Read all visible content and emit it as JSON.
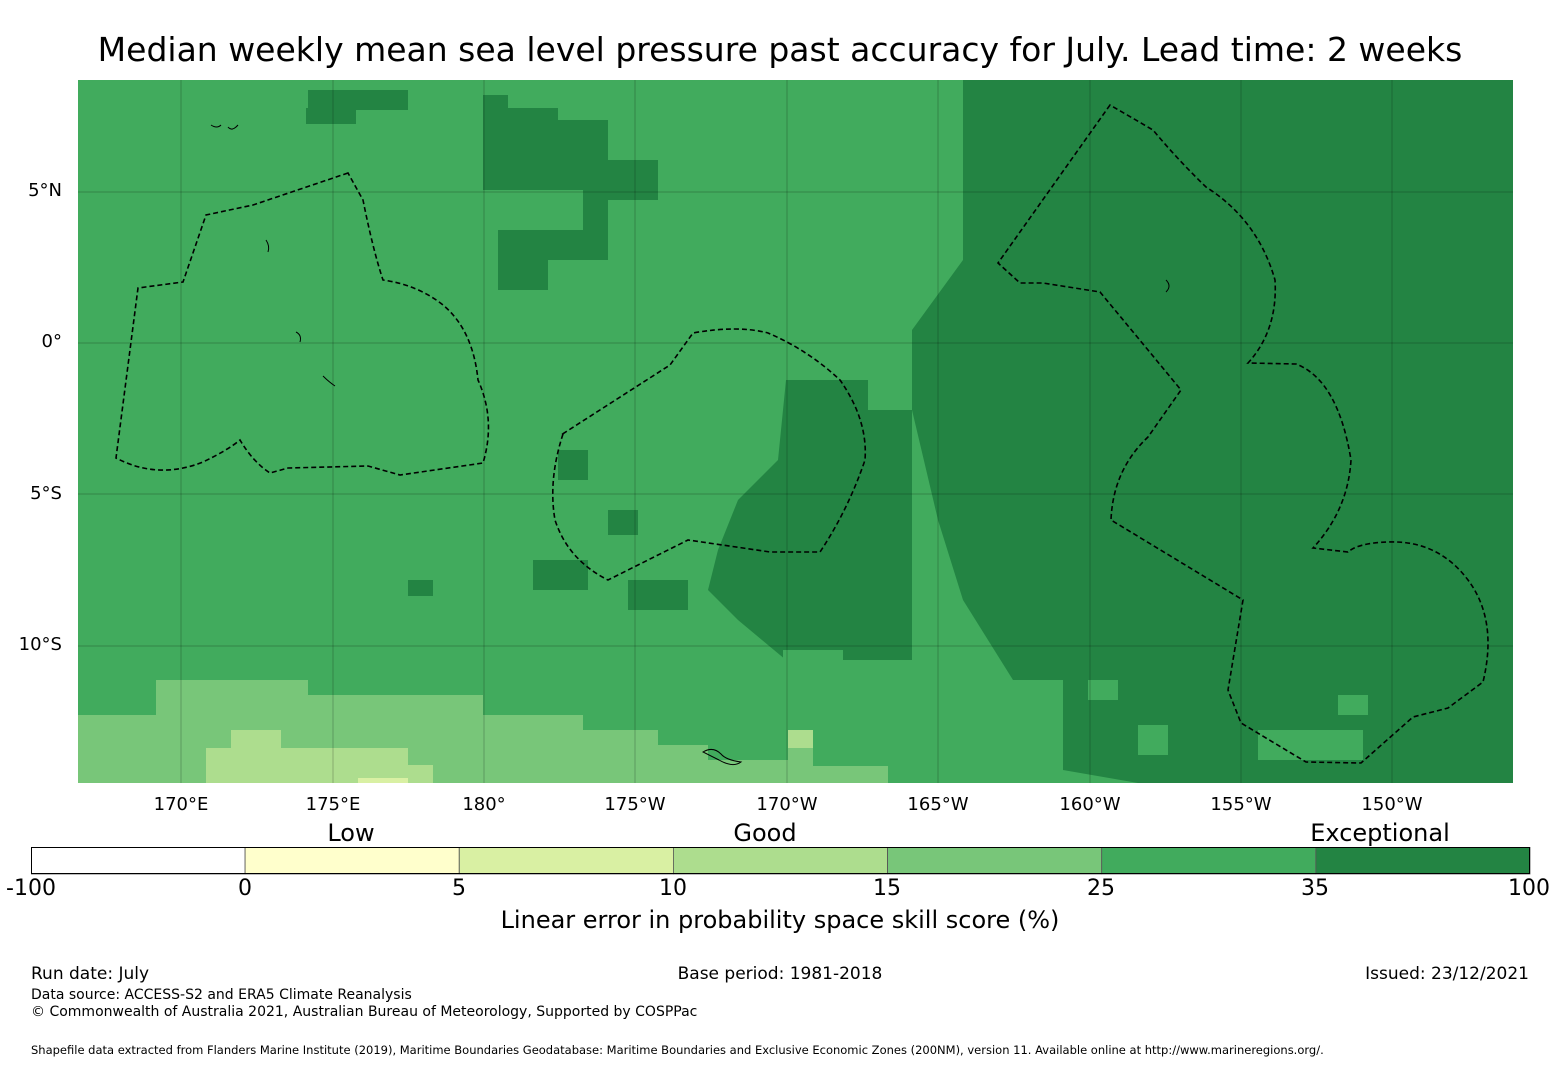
{
  "title": "Median weekly mean sea level pressure past accuracy for July. Lead time: 2 weeks",
  "axes": {
    "lat_labels": [
      "5°N",
      "0°",
      "5°S",
      "10°S"
    ],
    "lon_labels": [
      "170°E",
      "175°E",
      "180°",
      "175°W",
      "170°W",
      "165°W",
      "160°W",
      "155°W",
      "150°W"
    ]
  },
  "colorbar": {
    "categories": [
      "Low",
      "Good",
      "Exceptional"
    ],
    "ticks": [
      "-100",
      "0",
      "5",
      "10",
      "15",
      "25",
      "35",
      "100"
    ],
    "colors": [
      "#ffffff",
      "#ffffcc",
      "#d9f0a3",
      "#addd8e",
      "#78c679",
      "#41ab5d",
      "#238443"
    ],
    "label": "Linear error in probability space skill score (%)"
  },
  "footer": {
    "run_date": "Run date: July",
    "base_period": "Base period: 1981-2018",
    "issued": "Issued: 23/12/2021",
    "data_source": "Data source: ACCESS-S2 and ERA5 Climate Reanalysis",
    "copyright": "© Commonwealth of Australia 2021, Australian Bureau of Meteorology, Supported by COSPPac",
    "shapefile": "Shapefile data extracted from Flanders Marine Institute (2019), Maritime Boundaries Geodatabase: Maritime Boundaries and Exclusive Economic Zones (200NM), version 11. Available online at http://www.marineregions.org/."
  }
}
